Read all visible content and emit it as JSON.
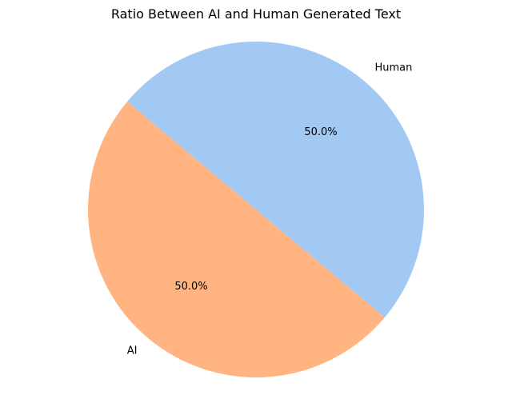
{
  "chart_data": {
    "type": "pie",
    "title": "Ratio Between AI and Human Generated Text",
    "slices": [
      {
        "label": "AI",
        "value": 50.0,
        "percent_label": "50.0%",
        "color": "#ffb482"
      },
      {
        "label": "Human",
        "value": 50.0,
        "percent_label": "50.0%",
        "color": "#a1c9f4"
      }
    ],
    "start_angle_deg": 140,
    "legend": "none"
  }
}
